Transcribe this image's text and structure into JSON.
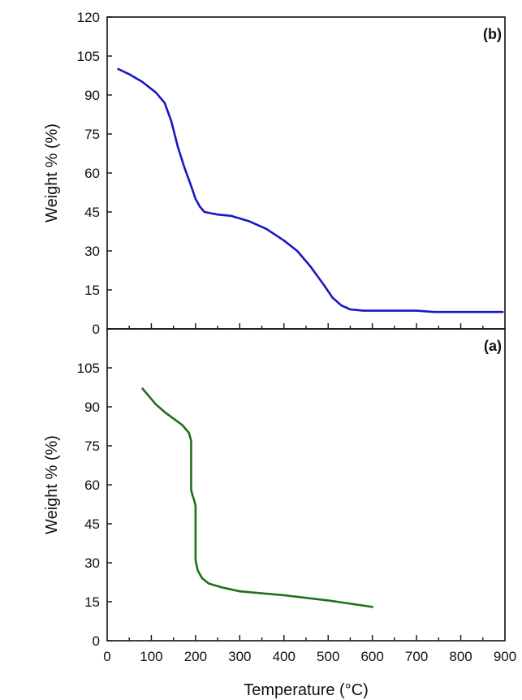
{
  "colors": {
    "axis": "#111111",
    "panel_b_line": "#1a17c0",
    "panel_a_line": "#1f6e1a"
  },
  "chart_data": [
    {
      "type": "line",
      "panel_label": "(b)",
      "xlabel": "",
      "ylabel": "Weight % (%)",
      "xlim": [
        0,
        900
      ],
      "ylim": [
        0,
        120
      ],
      "yticks": [
        "0",
        "15",
        "30",
        "45",
        "60",
        "75",
        "90",
        "105",
        "120"
      ],
      "xticks": [],
      "series": [
        {
          "color": "#1a17c0",
          "x": [
            25,
            50,
            80,
            110,
            130,
            145,
            160,
            175,
            190,
            200,
            210,
            220,
            235,
            250,
            280,
            320,
            360,
            400,
            430,
            460,
            490,
            510,
            530,
            550,
            580,
            620,
            700,
            740,
            800,
            850,
            895
          ],
          "y": [
            100,
            98,
            95,
            91,
            87,
            80,
            70,
            62,
            55,
            50,
            47,
            45,
            44.5,
            44,
            43.5,
            41.5,
            38.5,
            34,
            30,
            24,
            17,
            12,
            9,
            7.5,
            7,
            7,
            7,
            6.5,
            6.5,
            6.5,
            6.5
          ]
        }
      ]
    },
    {
      "type": "line",
      "panel_label": "(a)",
      "xlabel": "Temperature (°C)",
      "ylabel": "Weight % (%)",
      "xlim": [
        0,
        900
      ],
      "ylim": [
        0,
        120
      ],
      "yticks": [
        "0",
        "15",
        "30",
        "45",
        "60",
        "75",
        "90",
        "105"
      ],
      "xticks": [
        "0",
        "100",
        "200",
        "300",
        "400",
        "500",
        "600",
        "700",
        "800",
        "900"
      ],
      "series": [
        {
          "color": "#1f6e1a",
          "x": [
            80,
            95,
            110,
            130,
            150,
            170,
            185,
            190,
            190,
            193,
            197,
            200,
            200,
            205,
            215,
            230,
            260,
            300,
            400,
            500,
            600
          ],
          "y": [
            97,
            94,
            91,
            88,
            85.5,
            83,
            80,
            77,
            58,
            56,
            54,
            52,
            31,
            27,
            24,
            22,
            20.5,
            19,
            17.5,
            15.5,
            13
          ]
        }
      ]
    }
  ]
}
